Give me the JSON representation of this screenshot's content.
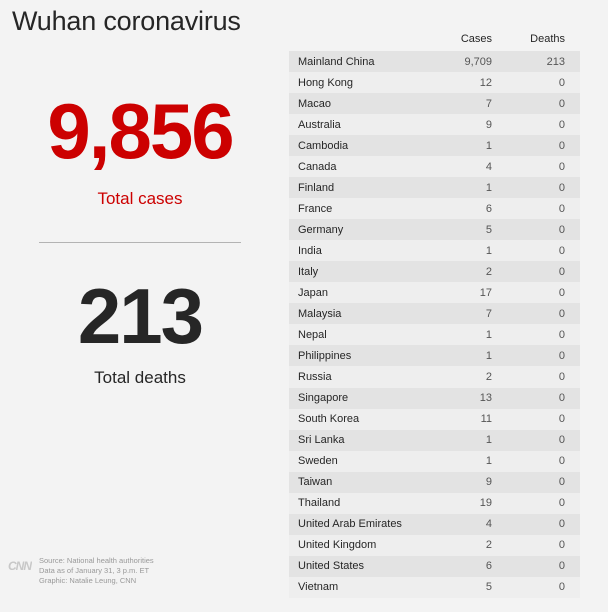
{
  "title": "Wuhan coronavirus",
  "summary": {
    "total_cases_value": "9,856",
    "total_cases_label": "Total cases",
    "total_deaths_value": "213",
    "total_deaths_label": "Total deaths"
  },
  "colors": {
    "accent": "#cc0000",
    "text": "#262626",
    "background": "#f3f3f3",
    "row_dark": "#e3e3e3",
    "row_light": "#eeeeee"
  },
  "chart_data": {
    "type": "table",
    "columns": [
      "",
      "Cases",
      "Deaths"
    ],
    "rows": [
      {
        "country": "Mainland China",
        "cases": "9,709",
        "deaths": "213"
      },
      {
        "country": "Hong Kong",
        "cases": "12",
        "deaths": "0"
      },
      {
        "country": "Macao",
        "cases": "7",
        "deaths": "0"
      },
      {
        "country": "Australia",
        "cases": "9",
        "deaths": "0"
      },
      {
        "country": "Cambodia",
        "cases": "1",
        "deaths": "0"
      },
      {
        "country": "Canada",
        "cases": "4",
        "deaths": "0"
      },
      {
        "country": "Finland",
        "cases": "1",
        "deaths": "0"
      },
      {
        "country": "France",
        "cases": "6",
        "deaths": "0"
      },
      {
        "country": "Germany",
        "cases": "5",
        "deaths": "0"
      },
      {
        "country": "India",
        "cases": "1",
        "deaths": "0"
      },
      {
        "country": "Italy",
        "cases": "2",
        "deaths": "0"
      },
      {
        "country": "Japan",
        "cases": "17",
        "deaths": "0"
      },
      {
        "country": "Malaysia",
        "cases": "7",
        "deaths": "0"
      },
      {
        "country": "Nepal",
        "cases": "1",
        "deaths": "0"
      },
      {
        "country": "Philippines",
        "cases": "1",
        "deaths": "0"
      },
      {
        "country": "Russia",
        "cases": "2",
        "deaths": "0"
      },
      {
        "country": "Singapore",
        "cases": "13",
        "deaths": "0"
      },
      {
        "country": "South Korea",
        "cases": "11",
        "deaths": "0"
      },
      {
        "country": "Sri Lanka",
        "cases": "1",
        "deaths": "0"
      },
      {
        "country": "Sweden",
        "cases": "1",
        "deaths": "0"
      },
      {
        "country": "Taiwan",
        "cases": "9",
        "deaths": "0"
      },
      {
        "country": "Thailand",
        "cases": "19",
        "deaths": "0"
      },
      {
        "country": "United Arab Emirates",
        "cases": "4",
        "deaths": "0"
      },
      {
        "country": "United Kingdom",
        "cases": "2",
        "deaths": "0"
      },
      {
        "country": "United States",
        "cases": "6",
        "deaths": "0"
      },
      {
        "country": "Vietnam",
        "cases": "5",
        "deaths": "0"
      }
    ]
  },
  "footer": {
    "logo": "CNN",
    "source_line": "Source: National health authorities",
    "data_line": "Data as of January 31, 3 p.m. ET",
    "graphic_line": "Graphic: Natalie Leung, CNN"
  }
}
